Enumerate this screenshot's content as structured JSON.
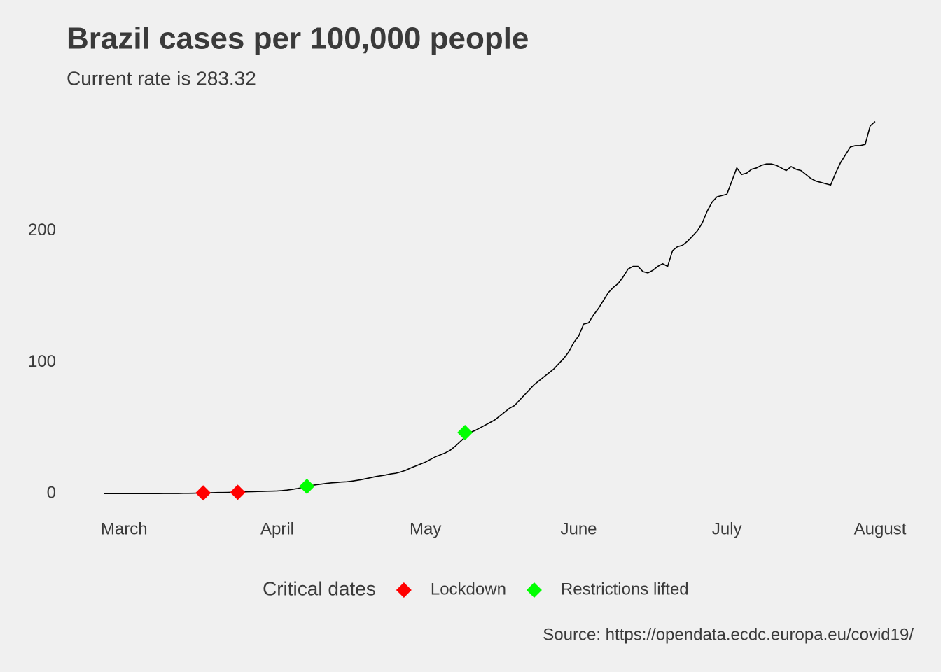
{
  "chart_data": {
    "type": "line",
    "title": "Brazil cases per 100,000 people",
    "subtitle": "Current rate is  283.32",
    "caption": "Source: https://opendata.ecdc.europa.eu/covid19/",
    "legend_title": "Critical dates",
    "legend_position": "bottom",
    "grid": false,
    "categories": [
      null,
      null,
      null,
      null,
      "March",
      null,
      null,
      null,
      null,
      null,
      null,
      null,
      null,
      null,
      null,
      null,
      null,
      null,
      null,
      null,
      null,
      null,
      null,
      null,
      null,
      null,
      null,
      null,
      null,
      null,
      null,
      null,
      null,
      null,
      null,
      "April",
      null,
      null,
      null,
      null,
      null,
      null,
      null,
      null,
      null,
      null,
      null,
      null,
      null,
      null,
      null,
      null,
      null,
      null,
      null,
      null,
      null,
      null,
      null,
      null,
      null,
      null,
      null,
      null,
      null,
      "May",
      null,
      null,
      null,
      null,
      null,
      null,
      null,
      null,
      null,
      null,
      null,
      null,
      null,
      null,
      null,
      null,
      null,
      null,
      null,
      null,
      null,
      null,
      null,
      null,
      null,
      null,
      null,
      null,
      null,
      null,
      "June",
      null,
      null,
      null,
      null,
      null,
      null,
      null,
      null,
      null,
      null,
      null,
      null,
      null,
      null,
      null,
      null,
      null,
      null,
      null,
      null,
      null,
      null,
      null,
      null,
      null,
      null,
      null,
      null,
      null,
      "July",
      null,
      null,
      null,
      null,
      null,
      null,
      null,
      null,
      null,
      null,
      null,
      null,
      null,
      null,
      null,
      null,
      null,
      null,
      null,
      null,
      null,
      null,
      null,
      null,
      null,
      null,
      null,
      null,
      null,
      null,
      "August"
    ],
    "series": [
      {
        "style": "line",
        "color": "#000000",
        "values": [
          0,
          0,
          0,
          0,
          0,
          0,
          0,
          0,
          0,
          0,
          0,
          0,
          0.1,
          0.1,
          0.1,
          0.1,
          0.2,
          0.2,
          0.3,
          0.4,
          0.5,
          0.6,
          0.7,
          0.8,
          0.8,
          0.9,
          1,
          1,
          1.2,
          1.4,
          1.5,
          1.6,
          1.7,
          1.8,
          1.9,
          2,
          2.3,
          2.7,
          3.2,
          3.8,
          4.6,
          5.5,
          6.2,
          6.8,
          7.3,
          7.8,
          8.2,
          8.5,
          8.8,
          9,
          9.4,
          10,
          10.6,
          11.4,
          12.2,
          13,
          13.6,
          14.2,
          15,
          15.5,
          16.5,
          17.8,
          19.5,
          21,
          22.5,
          24,
          26,
          28,
          29.5,
          31,
          33,
          36,
          39.5,
          43,
          46.5,
          48,
          50,
          52,
          54,
          56,
          59,
          62,
          65,
          67,
          71,
          75,
          79,
          83,
          86,
          89,
          92,
          95,
          99,
          103,
          108,
          115,
          120,
          129,
          130,
          136,
          141,
          147,
          153,
          157,
          160,
          165,
          171,
          173,
          173,
          169,
          168,
          170,
          173,
          175,
          173,
          185,
          188,
          189,
          192,
          196,
          200,
          206,
          215,
          222,
          226,
          227,
          228,
          238,
          248,
          243,
          244,
          247,
          248,
          250,
          251,
          251,
          250,
          248,
          246,
          249,
          247,
          246,
          243,
          240,
          238,
          237,
          236,
          235,
          244,
          252,
          258,
          264,
          265,
          265,
          266,
          280,
          283.32,
          null
        ]
      },
      {
        "name": "Lockdown",
        "style": "marker",
        "color": "#ff0000",
        "values": [
          null,
          null,
          null,
          null,
          null,
          null,
          null,
          null,
          null,
          null,
          null,
          null,
          null,
          null,
          null,
          null,
          null,
          null,
          null,
          null,
          0.5,
          null,
          null,
          null,
          null,
          null,
          null,
          1,
          null,
          null,
          null,
          null,
          null,
          null,
          null,
          null,
          null,
          null,
          null,
          null,
          null,
          null,
          null,
          null,
          null,
          null,
          null,
          null,
          null,
          null,
          null,
          null,
          null,
          null,
          null,
          null,
          null,
          null,
          null,
          null,
          null,
          null,
          null,
          null,
          null,
          null,
          null,
          null,
          null,
          null,
          null,
          null,
          null,
          null,
          null,
          null,
          null,
          null,
          null,
          null,
          null,
          null,
          null,
          null,
          null,
          null,
          null,
          null,
          null,
          null,
          null,
          null,
          null,
          null,
          null,
          null,
          null,
          null,
          null,
          null,
          null,
          null,
          null,
          null,
          null,
          null,
          null,
          null,
          null,
          null,
          null,
          null,
          null,
          null,
          null,
          null,
          null,
          null,
          null,
          null,
          null,
          null,
          null,
          null,
          null,
          null,
          null,
          null,
          null,
          null,
          null,
          null,
          null,
          null,
          null,
          null,
          null,
          null,
          null,
          null,
          null,
          null,
          null,
          null,
          null,
          null,
          null,
          null,
          null,
          null,
          null,
          null,
          null,
          null,
          null,
          null,
          null,
          null
        ]
      },
      {
        "name": "Restrictions lifted",
        "style": "marker",
        "color": "#00ff00",
        "values": [
          null,
          null,
          null,
          null,
          null,
          null,
          null,
          null,
          null,
          null,
          null,
          null,
          null,
          null,
          null,
          null,
          null,
          null,
          null,
          null,
          null,
          null,
          null,
          null,
          null,
          null,
          null,
          null,
          null,
          null,
          null,
          null,
          null,
          null,
          null,
          null,
          null,
          null,
          null,
          null,
          null,
          5.5,
          null,
          null,
          null,
          null,
          null,
          null,
          null,
          null,
          null,
          null,
          null,
          null,
          null,
          null,
          null,
          null,
          null,
          null,
          null,
          null,
          null,
          null,
          null,
          null,
          null,
          null,
          null,
          null,
          null,
          null,
          null,
          46.5,
          null,
          null,
          null,
          null,
          null,
          null,
          null,
          null,
          null,
          null,
          null,
          null,
          null,
          null,
          null,
          null,
          null,
          null,
          null,
          null,
          null,
          null,
          null,
          null,
          null,
          null,
          null,
          null,
          null,
          null,
          null,
          null,
          null,
          null,
          null,
          null,
          null,
          null,
          null,
          null,
          null,
          null,
          null,
          null,
          null,
          null,
          null,
          null,
          null,
          null,
          null,
          null,
          null,
          null,
          null,
          null,
          null,
          null,
          null,
          null,
          null,
          null,
          null,
          null,
          null,
          null,
          null,
          null,
          null,
          null,
          null,
          null,
          null,
          null,
          null,
          null,
          null,
          null,
          null,
          null,
          null,
          null,
          null,
          null
        ]
      }
    ],
    "ylim": [
      -10,
      290
    ],
    "yticks": [
      0,
      100,
      200
    ]
  }
}
